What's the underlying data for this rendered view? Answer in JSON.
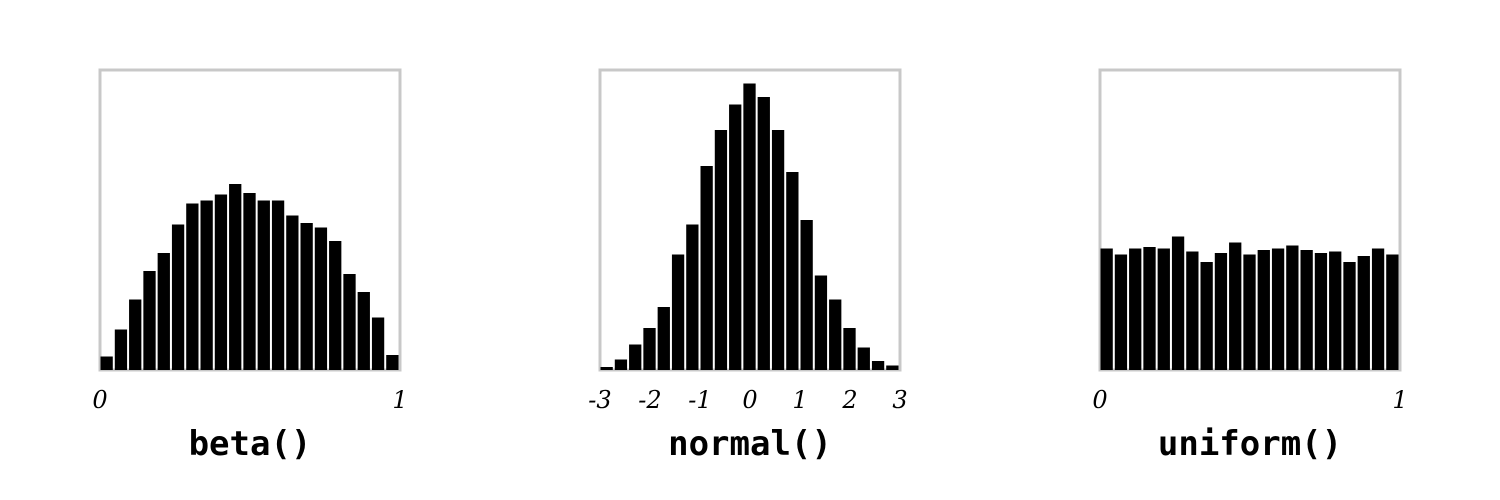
{
  "chart_data": [
    {
      "type": "bar",
      "title": "beta()",
      "xlim": [
        0,
        1
      ],
      "x_ticks": [
        "0",
        "1"
      ],
      "ylim": [
        0,
        1
      ],
      "grid": false,
      "values": [
        0.045,
        0.135,
        0.235,
        0.33,
        0.39,
        0.485,
        0.555,
        0.565,
        0.585,
        0.62,
        0.59,
        0.565,
        0.565,
        0.515,
        0.49,
        0.475,
        0.43,
        0.32,
        0.26,
        0.175,
        0.05
      ]
    },
    {
      "type": "bar",
      "title": "normal()",
      "xlim": [
        -3,
        3
      ],
      "x_ticks": [
        "-3",
        "-2",
        "-1",
        "0",
        "1",
        "2",
        "3"
      ],
      "ylim": [
        0,
        1
      ],
      "grid": false,
      "values": [
        0.01,
        0.035,
        0.085,
        0.14,
        0.21,
        0.385,
        0.485,
        0.68,
        0.8,
        0.885,
        0.955,
        0.91,
        0.8,
        0.66,
        0.5,
        0.315,
        0.235,
        0.14,
        0.075,
        0.03,
        0.015
      ]
    },
    {
      "type": "bar",
      "title": "uniform()",
      "xlim": [
        0,
        1
      ],
      "x_ticks": [
        "0",
        "1"
      ],
      "ylim": [
        0,
        1
      ],
      "grid": false,
      "values": [
        0.405,
        0.385,
        0.405,
        0.41,
        0.405,
        0.445,
        0.395,
        0.36,
        0.39,
        0.425,
        0.385,
        0.4,
        0.405,
        0.415,
        0.4,
        0.39,
        0.395,
        0.36,
        0.38,
        0.405,
        0.385
      ]
    }
  ]
}
